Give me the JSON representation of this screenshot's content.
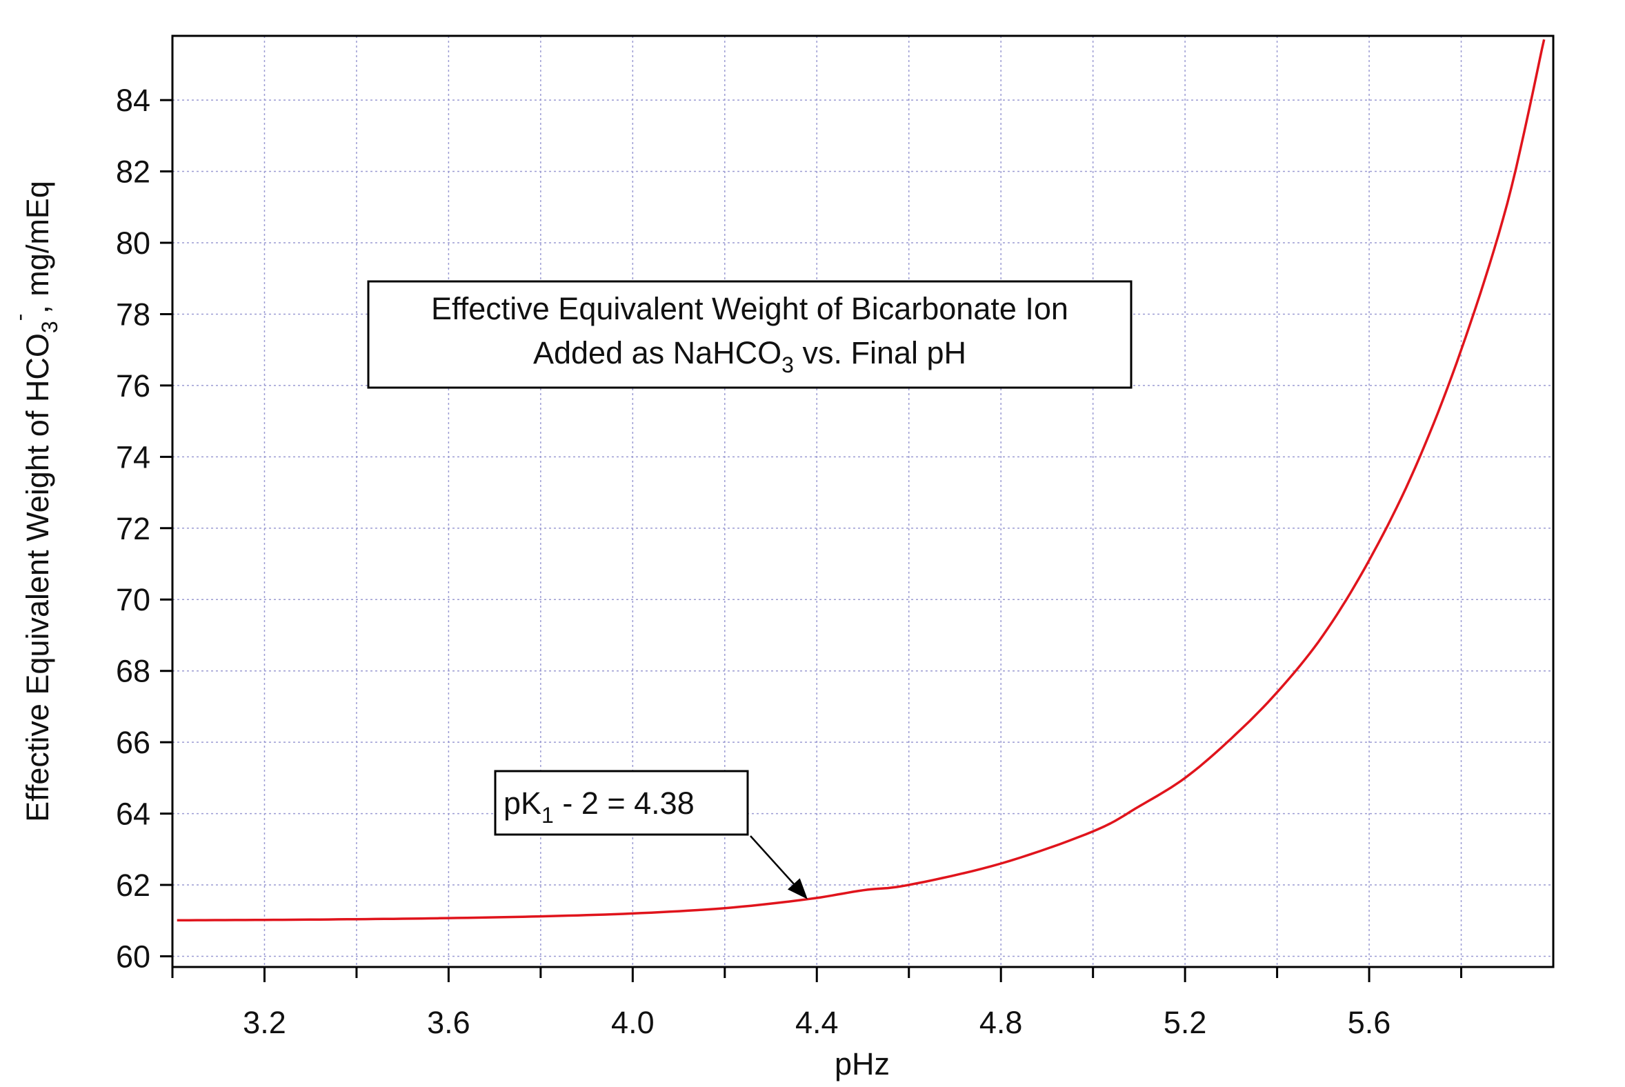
{
  "chart_data": {
    "type": "line",
    "xlabel": "pHz",
    "ylabel_main": "Effective Equivalent Weight of HCO",
    "ylabel_sub": "3",
    "ylabel_sup": "-",
    "ylabel_tail": ", mg/mEq",
    "xlim": [
      3.0,
      6.0
    ],
    "ylim": [
      59.7,
      85.8
    ],
    "xticks_major": [
      3.2,
      3.6,
      4.0,
      4.4,
      4.8,
      5.2,
      5.6
    ],
    "xtick_labels": [
      "3.2",
      "3.6",
      "4.0",
      "4.4",
      "4.8",
      "5.2",
      "5.6"
    ],
    "xticks_minor": [
      3.0,
      3.4,
      3.8,
      4.2,
      4.6,
      5.0,
      5.4,
      5.8
    ],
    "yticks": [
      60,
      62,
      64,
      66,
      68,
      70,
      72,
      74,
      76,
      78,
      80,
      82,
      84
    ],
    "ytick_labels": [
      "60",
      "62",
      "64",
      "66",
      "68",
      "70",
      "72",
      "74",
      "76",
      "78",
      "80",
      "82",
      "84"
    ],
    "grid": true,
    "series": [
      {
        "color": "#e0141c",
        "x": [
          3.01,
          3.2,
          3.4,
          3.6,
          3.8,
          4.0,
          4.2,
          4.38,
          4.5,
          4.6,
          4.8,
          5.0,
          5.1,
          5.2,
          5.3,
          5.4,
          5.5,
          5.6,
          5.7,
          5.8,
          5.9,
          5.98
        ],
        "y": [
          61.01,
          61.02,
          61.04,
          61.07,
          61.12,
          61.2,
          61.35,
          61.6,
          61.85,
          62.0,
          62.6,
          63.5,
          64.2,
          65.0,
          66.1,
          67.4,
          69.0,
          71.1,
          73.7,
          77.0,
          81.1,
          85.7
        ]
      }
    ],
    "title_box": {
      "line1": "Effective Equivalent Weight of Bicarbonate Ion",
      "line2_pre": "Added as NaHCO",
      "line2_sub": "3",
      "line2_post": " vs. Final pH"
    },
    "annotation": {
      "text_pre": "pK",
      "text_sub": "1",
      "text_post": " - 2 = 4.38",
      "target_x": 4.38,
      "target_y": 61.6
    }
  }
}
